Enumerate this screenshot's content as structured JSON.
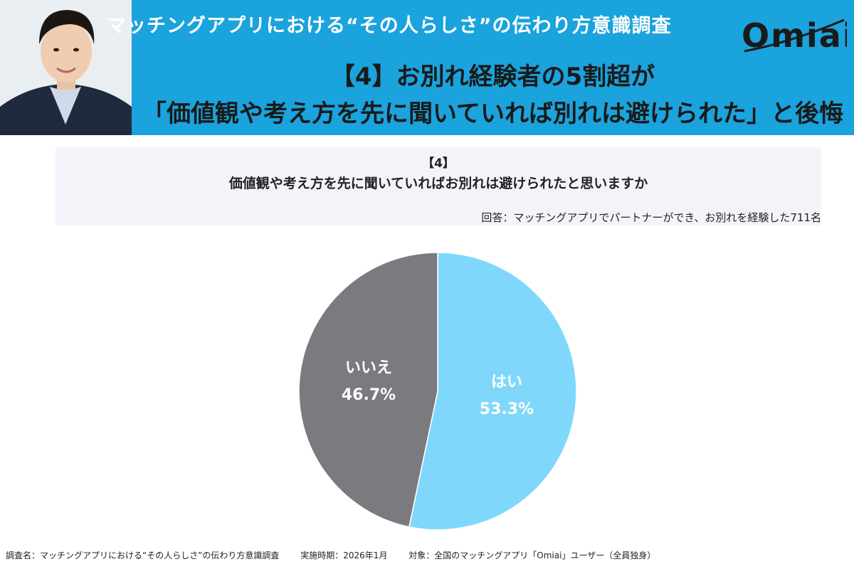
{
  "header": {
    "survey_title": "マッチングアプリにおける“その人らしさ”の伝わり方意識調査",
    "logo_text": "Omiai",
    "headline_line1": "【4】お別れ経験者の5割超が",
    "headline_line2": "「価値観や考え方を先に聞いていれば別れは避けられた」と後悔"
  },
  "question": {
    "number": "【4】",
    "text": "価値観や考え方を先に聞いていればお別れは避けられたと思いますか",
    "respondents": "回答：マッチングアプリでパートナーができ、お別れを経験した711名"
  },
  "chart_data": {
    "type": "pie",
    "categories": [
      "はい",
      "いいえ"
    ],
    "values": [
      53.3,
      46.7
    ],
    "value_labels": [
      "53.3%",
      "46.7%"
    ],
    "colors": [
      "#7fd8fb",
      "#7c7a7e"
    ],
    "label_color": "#ffffff"
  },
  "footer": {
    "survey_name": "調査名：マッチングアプリにおける“その人らしさ”の伝わり方意識調査",
    "period": "実施時期：2026年1月",
    "target": "対象：全国のマッチングアプリ「Omiai」ユーザー（全員独身）"
  },
  "colors": {
    "banner": "#1aa3dd",
    "question_box": "#f5f3fa"
  }
}
